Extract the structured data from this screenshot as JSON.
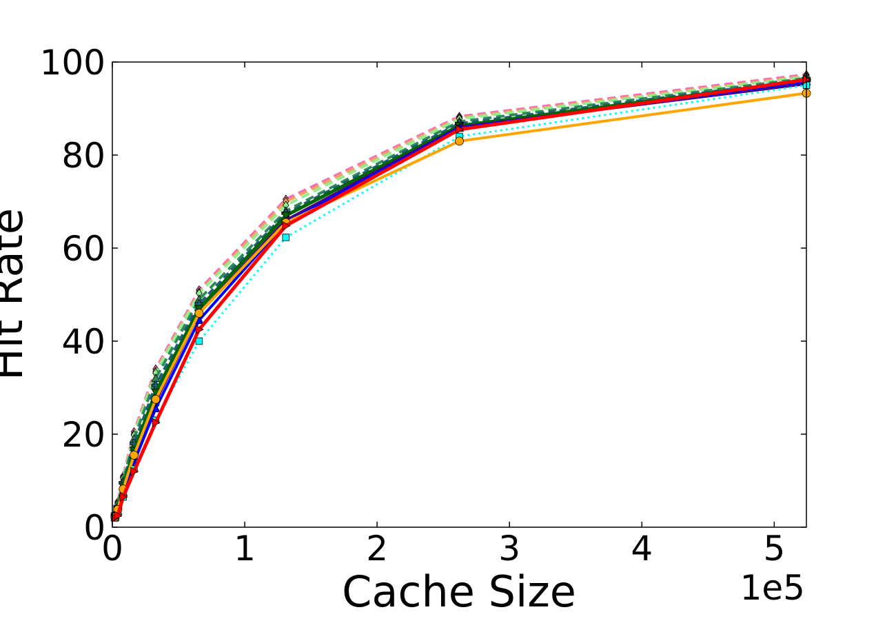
{
  "chart_data": {
    "type": "line",
    "xlabel": "Cache Size",
    "ylabel": "Hit Rate",
    "x_exponent_label": "1e5",
    "xlim": [
      0,
      5.24288
    ],
    "ylim": [
      0,
      100
    ],
    "xticks": [
      0,
      1,
      2,
      3,
      4,
      5
    ],
    "yticks": [
      0,
      20,
      40,
      60,
      80,
      100
    ],
    "x_tick_labels": [
      "0",
      "1",
      "2",
      "3",
      "4",
      "5"
    ],
    "y_tick_labels": [
      "0",
      "20",
      "40",
      "60",
      "80",
      "100"
    ],
    "grid": false,
    "legend": "none",
    "x": [
      0.02048,
      0.04096,
      0.08192,
      0.16384,
      0.32768,
      0.65536,
      1.31072,
      2.62144,
      5.24288
    ],
    "series": [
      {
        "color": "#ff69b4",
        "dash": "12,7",
        "width": 4,
        "marker": "diamond",
        "values": [
          3.0,
          5.5,
          11.0,
          20.5,
          34.0,
          51.0,
          70.5,
          88.3,
          97.3
        ]
      },
      {
        "color": "#f4a460",
        "dash": "12,7",
        "width": 4,
        "marker": "diamond",
        "values": [
          2.8,
          5.2,
          10.7,
          20.0,
          33.5,
          50.5,
          70.0,
          88.0,
          97.0
        ]
      },
      {
        "color": "#90ee90",
        "dash": "12,7",
        "width": 4,
        "marker": "diamond",
        "values": [
          2.7,
          5.0,
          10.5,
          19.8,
          33.2,
          50.3,
          69.2,
          87.8,
          96.8
        ]
      },
      {
        "color": "#2e8b57",
        "dash": "12,7",
        "width": 4,
        "marker": "triangle-up",
        "values": [
          2.6,
          4.6,
          10.0,
          19.0,
          32.0,
          49.0,
          68.0,
          87.2,
          96.5
        ]
      },
      {
        "color": "#1f5f7a",
        "dash": "10,6",
        "width": 4,
        "marker": "plus",
        "values": [
          2.5,
          4.3,
          9.6,
          18.0,
          30.5,
          48.0,
          67.5,
          86.8,
          96.2
        ]
      },
      {
        "color": "#006400",
        "dash": "",
        "width": 5,
        "marker": "triangle-down",
        "values": [
          2.4,
          4.0,
          8.8,
          16.5,
          29.0,
          47.0,
          67.0,
          86.3,
          96.0
        ]
      },
      {
        "color": "#4b0082",
        "dash": "",
        "width": 4,
        "marker": "triangle-left",
        "values": [
          2.3,
          3.8,
          8.0,
          15.0,
          27.0,
          46.0,
          66.0,
          86.0,
          95.3
        ]
      },
      {
        "color": "#0000ff",
        "dash": "",
        "width": 4,
        "marker": "triangle-up",
        "values": [
          2.2,
          3.5,
          7.5,
          14.0,
          25.5,
          44.5,
          65.5,
          85.8,
          95.8
        ]
      },
      {
        "color": "#00ffff",
        "dash": "3,5",
        "width": 3,
        "marker": "square",
        "values": [
          2.0,
          3.0,
          6.5,
          12.5,
          23.0,
          40.0,
          62.3,
          84.0,
          95.0
        ]
      },
      {
        "color": "#ffa500",
        "dash": "",
        "width": 4,
        "marker": "circle",
        "values": [
          2.2,
          3.8,
          8.2,
          15.5,
          27.5,
          46.0,
          65.5,
          83.0,
          93.3
        ]
      },
      {
        "color": "#ff0000",
        "dash": "",
        "width": 5,
        "marker": "triangle-right",
        "values": [
          2.0,
          2.5,
          6.5,
          12.0,
          22.5,
          42.5,
          64.8,
          85.5,
          96.2
        ]
      }
    ]
  }
}
